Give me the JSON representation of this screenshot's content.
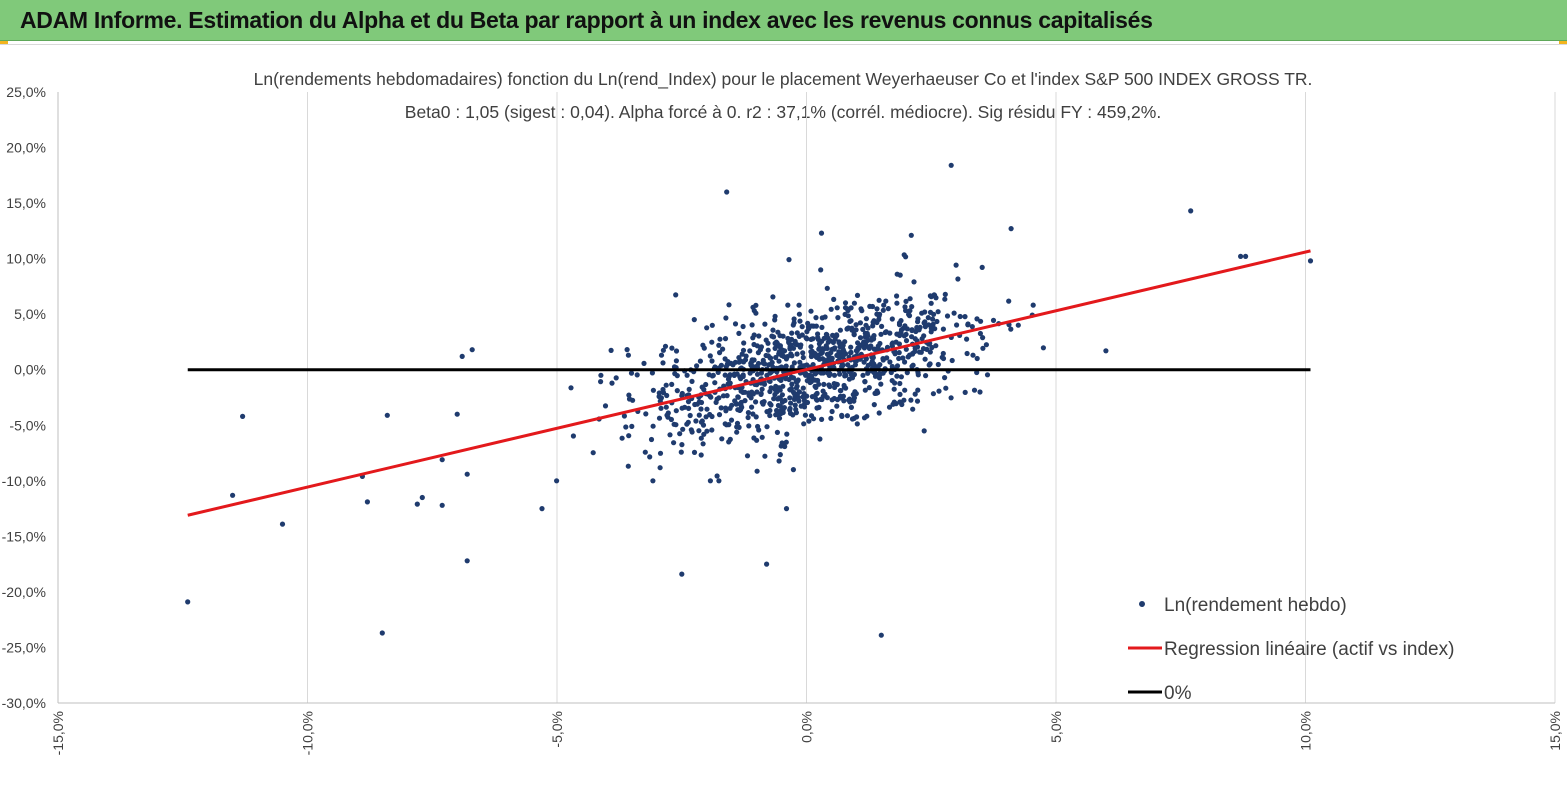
{
  "banner": {
    "title": "ADAM Informe. Estimation du Alpha et du Beta par rapport à un index avec les revenus connus capitalisés"
  },
  "colors": {
    "banner": "#80c97a",
    "points": "#1f3b6e",
    "regression": "#e3191c",
    "zero_line": "#000000",
    "grid": "#d9d9d9"
  },
  "chart_data": {
    "type": "scatter",
    "title": "Ln(rendements hebdomadaires) fonction du Ln(rend_Index) pour le placement Weyerhaeuser Co et l'index S&P 500 INDEX GROSS TR.",
    "subtitle": "Beta0 : 1,05  (sigest : 0,04). Alpha forcé à 0. r2 : 37,1% (corrél. médiocre). Sig résidu FY : 459,2%.",
    "xlim": [
      -0.15,
      0.15
    ],
    "ylim": [
      -0.3,
      0.25
    ],
    "x_ticks": [
      "-15,0%",
      "-10,0%",
      "-5,0%",
      "0,0%",
      "5,0%",
      "10,0%",
      "15,0%"
    ],
    "y_ticks": [
      "25,0%",
      "20,0%",
      "15,0%",
      "10,0%",
      "5,0%",
      "0,0%",
      "-5,0%",
      "-10,0%",
      "-15,0%",
      "-20,0%",
      "-25,0%",
      "-30,0%"
    ],
    "grid": "vertical major gridlines",
    "legend_position": "bottom-right",
    "legend": [
      "Ln(rendement hebdo)",
      "Regression linéaire (actif vs index)",
      "0%"
    ],
    "series": [
      {
        "name": "Ln(rendement hebdo)",
        "kind": "scatter",
        "points_note": "approximately 1100 points, mostly clustered between x -0.03..0.035 and y -0.08..0.08",
        "outliers": [
          [
            -0.124,
            -0.209
          ],
          [
            -0.115,
            -0.113
          ],
          [
            -0.113,
            -0.042
          ],
          [
            -0.105,
            -0.139
          ],
          [
            -0.089,
            -0.096
          ],
          [
            -0.088,
            -0.119
          ],
          [
            -0.085,
            -0.237
          ],
          [
            -0.084,
            -0.041
          ],
          [
            -0.078,
            -0.121
          ],
          [
            -0.077,
            -0.115
          ],
          [
            -0.073,
            -0.122
          ],
          [
            -0.073,
            -0.081
          ],
          [
            -0.07,
            -0.04
          ],
          [
            -0.069,
            0.012
          ],
          [
            -0.068,
            -0.094
          ],
          [
            -0.068,
            -0.172
          ],
          [
            -0.067,
            0.018
          ],
          [
            -0.053,
            -0.125
          ],
          [
            -0.025,
            -0.184
          ],
          [
            -0.016,
            0.16
          ],
          [
            -0.008,
            -0.175
          ],
          [
            -0.004,
            -0.125
          ],
          [
            0.015,
            -0.239
          ],
          [
            0.029,
            0.184
          ],
          [
            0.077,
            0.143
          ],
          [
            0.087,
            0.102
          ],
          [
            0.088,
            0.102
          ],
          [
            0.101,
            0.098
          ],
          [
            0.06,
            0.017
          ],
          [
            0.003,
            0.123
          ],
          [
            0.021,
            0.121
          ],
          [
            0.041,
            0.127
          ]
        ]
      },
      {
        "name": "Regression linéaire (actif vs index)",
        "kind": "line",
        "x": [
          -0.124,
          0.101
        ],
        "y": [
          -0.131,
          0.107
        ]
      },
      {
        "name": "0%",
        "kind": "line",
        "x": [
          -0.124,
          0.101
        ],
        "y": [
          0,
          0
        ]
      }
    ]
  }
}
